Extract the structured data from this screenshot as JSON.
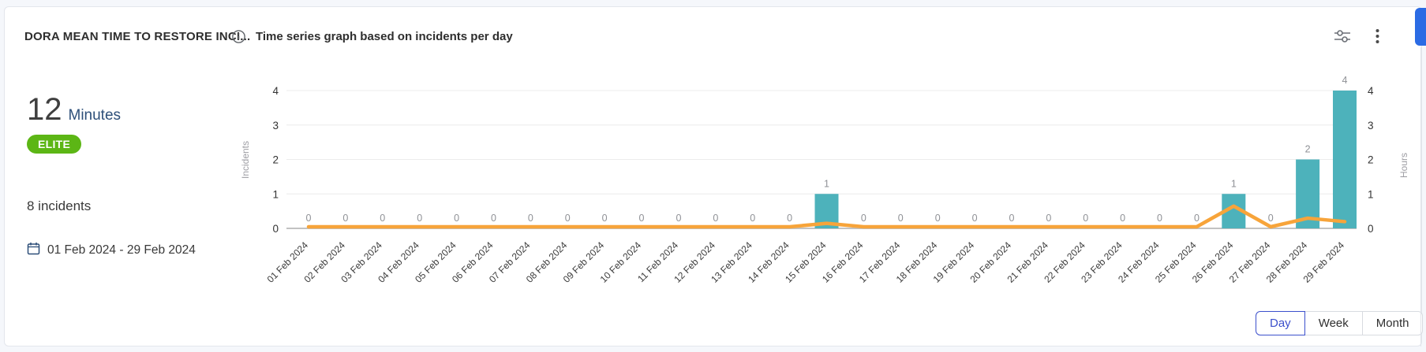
{
  "header": {
    "title": "DORA MEAN TIME TO RESTORE INCI...",
    "subtitle": "Time series graph based on incidents per day",
    "info_icon": "info-icon",
    "filters_icon": "sliders-icon",
    "menu_icon": "kebab-menu-icon"
  },
  "summary": {
    "value": "12",
    "unit": "Minutes",
    "badge": "ELITE",
    "incidents_total": "8 incidents",
    "date_range": "01 Feb 2024 - 29 Feb 2024"
  },
  "chart_data": {
    "type": "bar",
    "title": "Time series graph based on incidents per day",
    "categories": [
      "01 Feb 2024",
      "02 Feb 2024",
      "03 Feb 2024",
      "04 Feb 2024",
      "05 Feb 2024",
      "06 Feb 2024",
      "07 Feb 2024",
      "08 Feb 2024",
      "09 Feb 2024",
      "10 Feb 2024",
      "11 Feb 2024",
      "12 Feb 2024",
      "13 Feb 2024",
      "14 Feb 2024",
      "15 Feb 2024",
      "16 Feb 2024",
      "17 Feb 2024",
      "18 Feb 2024",
      "19 Feb 2024",
      "20 Feb 2024",
      "21 Feb 2024",
      "22 Feb 2024",
      "23 Feb 2024",
      "24 Feb 2024",
      "25 Feb 2024",
      "26 Feb 2024",
      "27 Feb 2024",
      "28 Feb 2024",
      "29 Feb 2024"
    ],
    "series": [
      {
        "name": "Incidents",
        "type": "bar",
        "color": "#4db2bb",
        "values": [
          0,
          0,
          0,
          0,
          0,
          0,
          0,
          0,
          0,
          0,
          0,
          0,
          0,
          0,
          1,
          0,
          0,
          0,
          0,
          0,
          0,
          0,
          0,
          0,
          0,
          1,
          0,
          2,
          4
        ]
      },
      {
        "name": "Hours",
        "type": "line",
        "color": "#f7a43a",
        "values": [
          0,
          0,
          0,
          0,
          0,
          0,
          0,
          0,
          0,
          0,
          0,
          0,
          0,
          0,
          0.1,
          0,
          0,
          0,
          0,
          0,
          0,
          0,
          0,
          0,
          0,
          0.6,
          0,
          0.25,
          0.15
        ]
      }
    ],
    "ylabel_left": "Incidents",
    "ylabel_right": "Hours",
    "yticks": [
      0,
      1,
      2,
      3,
      4
    ],
    "ylim": [
      0,
      4
    ],
    "grid": true,
    "legend": "none",
    "data_labels": "incident counts shown above each day",
    "colors": {
      "grid": "#ececec",
      "axis": "#c2c2c2",
      "tick_text": "#333333",
      "axis_label_text": "#9e9ea4",
      "data_label_text": "#8f9196",
      "x_label_text": "#3b3b3b"
    }
  },
  "controls": {
    "granularity": [
      {
        "label": "Day",
        "active": true
      },
      {
        "label": "Week",
        "active": false
      },
      {
        "label": "Month",
        "active": false
      }
    ]
  },
  "colors": {
    "badge_green": "#5cb615",
    "bar_teal": "#4db2bb",
    "line_orange": "#f7a43a",
    "accent_blue": "#3c50cc",
    "unit_navy": "#2d4f79",
    "side_tab_blue": "#2b6be4"
  }
}
